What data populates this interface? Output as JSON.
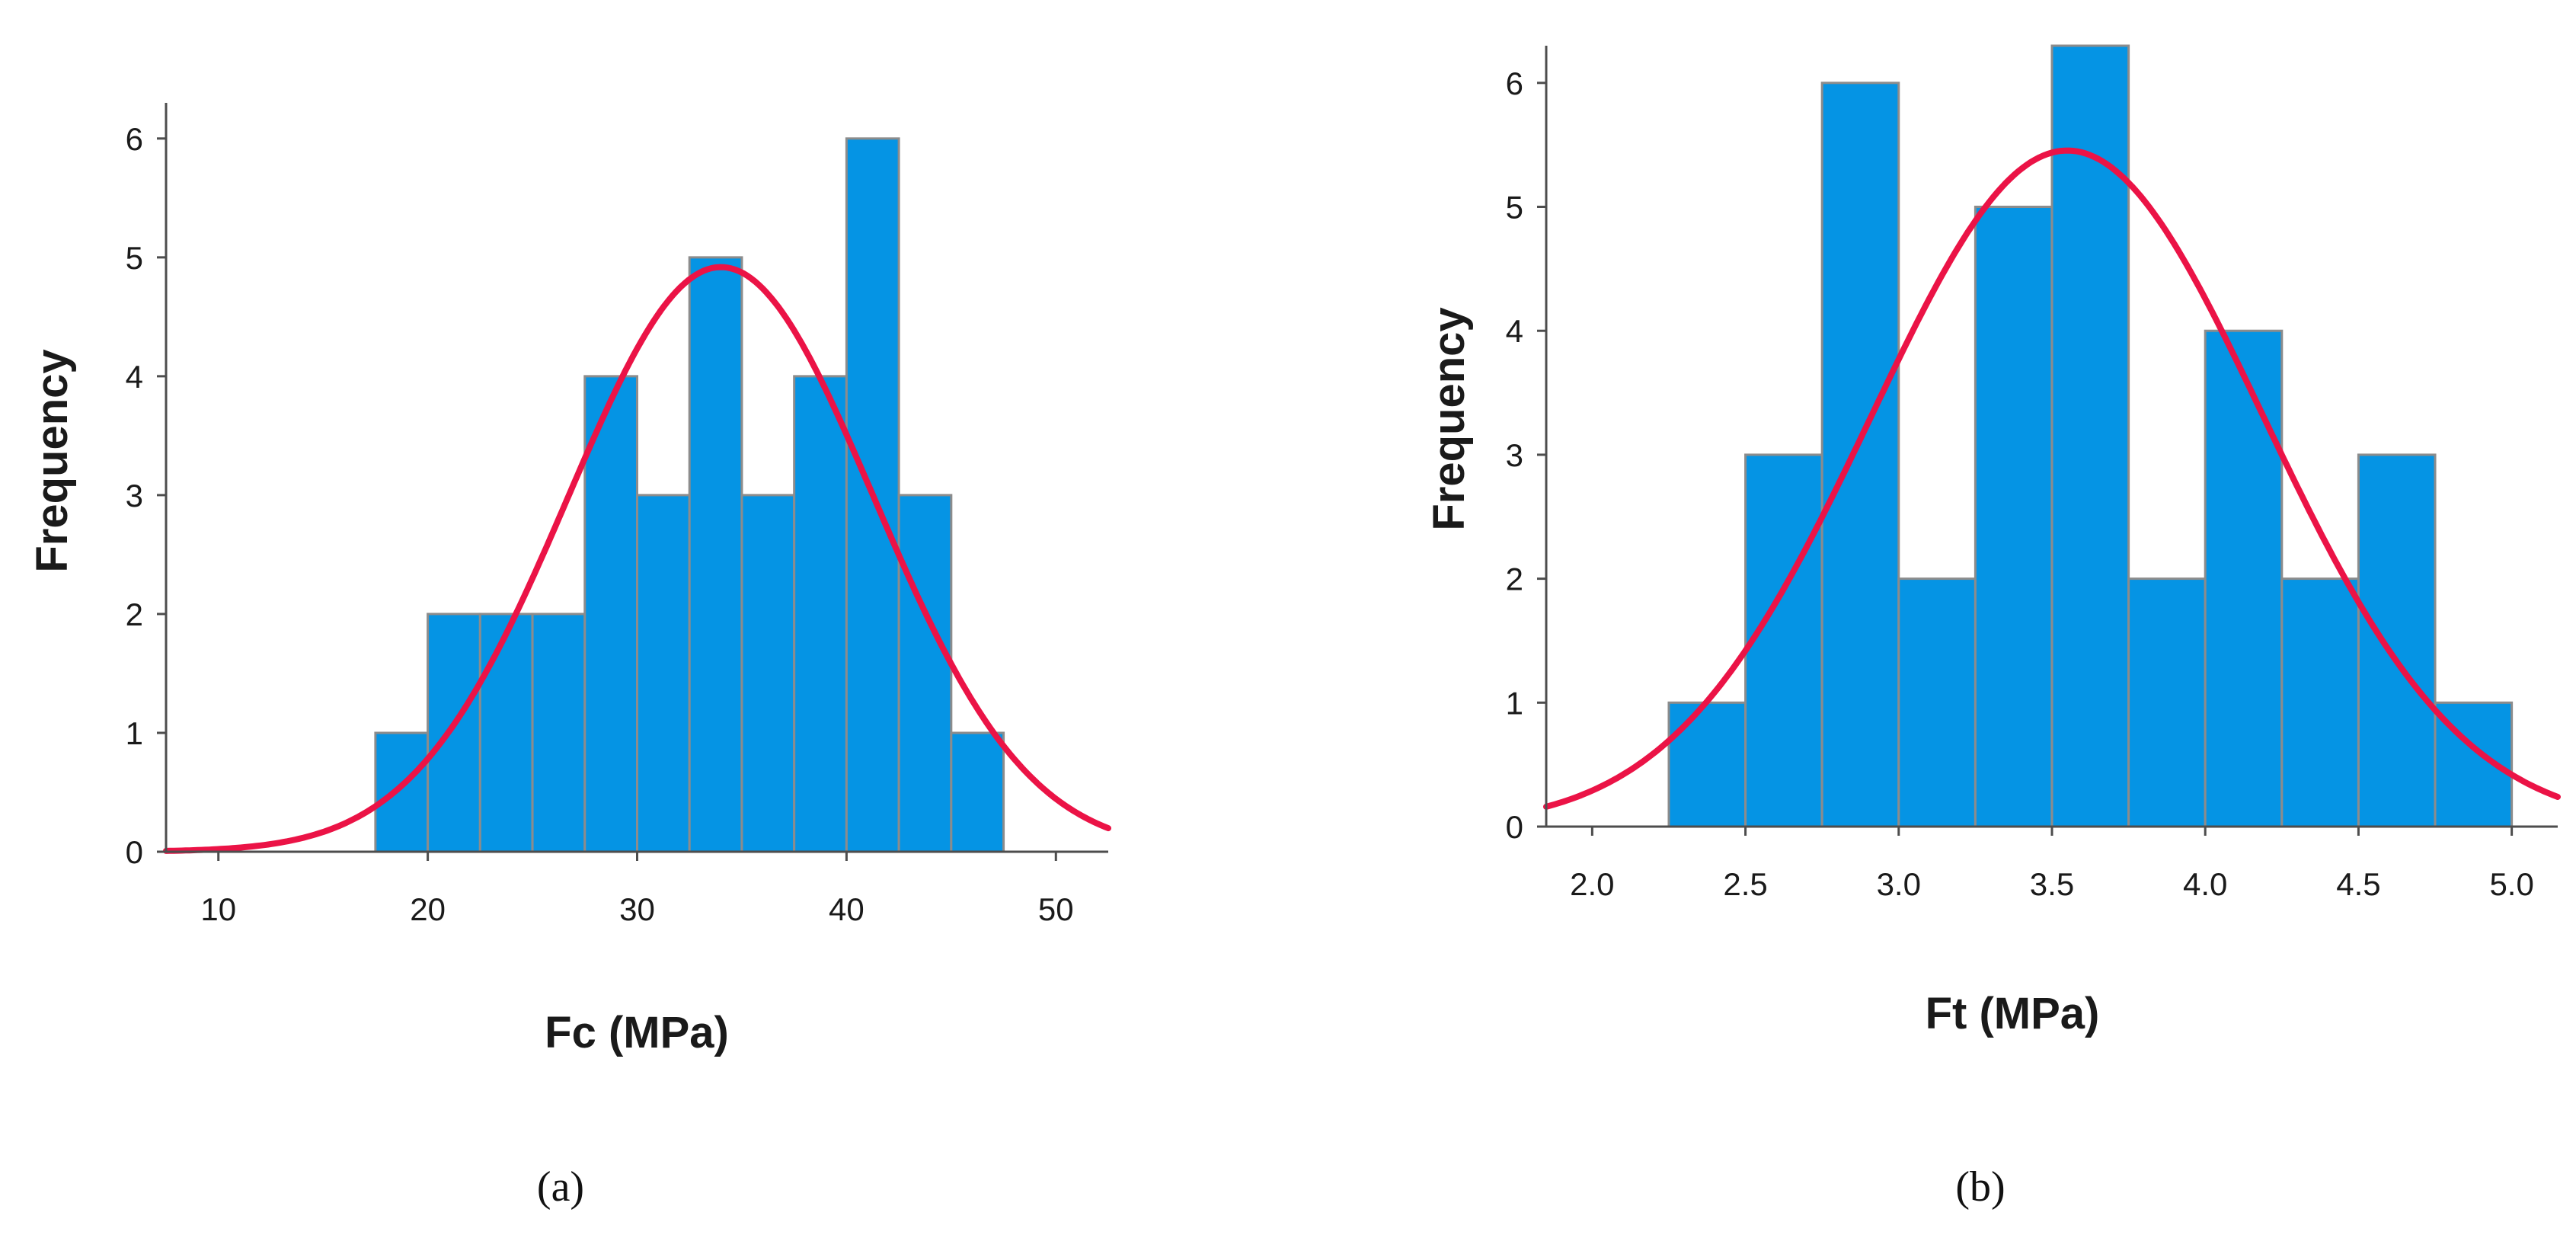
{
  "colors": {
    "bar_fill": "#0594e4",
    "bar_edge": "#8c8c8c",
    "curve": "#eb1346",
    "axis": "#4d4d4d"
  },
  "chart_data": [
    {
      "type": "bar",
      "subtype": "histogram_with_normal_curve",
      "caption": "(a)",
      "xlabel": "Fc (MPa)",
      "ylabel": "Frequency",
      "xlim": [
        7.5,
        52.5
      ],
      "ylim": [
        0,
        6.3
      ],
      "xticks": [
        10,
        20,
        30,
        40,
        50
      ],
      "xtick_labels": [
        "10",
        "20",
        "30",
        "40",
        "50"
      ],
      "yticks": [
        0,
        1,
        2,
        3,
        4,
        5,
        6
      ],
      "ytick_labels": [
        "0",
        "1",
        "2",
        "3",
        "4",
        "5",
        "6"
      ],
      "bin_width": 2.5,
      "bin_starts": [
        17.5,
        20,
        22.5,
        25,
        27.5,
        30,
        32.5,
        35,
        37.5,
        40,
        42.5,
        45
      ],
      "values": [
        1,
        2,
        2,
        2,
        4,
        3,
        5,
        3,
        4,
        6,
        3,
        1
      ],
      "normal_curve": {
        "mean": 34,
        "std": 7.3,
        "n": 36
      }
    },
    {
      "type": "bar",
      "subtype": "histogram_with_normal_curve",
      "caption": "(b)",
      "xlabel": "Ft (MPa)",
      "ylabel": "Frequency",
      "xlim": [
        1.85,
        5.15
      ],
      "ylim": [
        0,
        6.3
      ],
      "xticks": [
        2.0,
        2.5,
        3.0,
        3.5,
        4.0,
        4.5,
        5.0
      ],
      "xtick_labels": [
        "2.0",
        "2.5",
        "3.0",
        "3.5",
        "4.0",
        "4.5",
        "5.0"
      ],
      "yticks": [
        0,
        1,
        2,
        3,
        4,
        5,
        6
      ],
      "ytick_labels": [
        "0",
        "1",
        "2",
        "3",
        "4",
        "5",
        "6"
      ],
      "bin_width": 0.25,
      "bin_starts": [
        2.25,
        2.5,
        2.75,
        3.0,
        3.25,
        3.5,
        3.75,
        4.0,
        4.25,
        4.5,
        4.75
      ],
      "values": [
        1,
        3,
        6,
        2,
        5,
        6.3,
        2,
        4,
        2,
        3,
        1
      ],
      "normal_curve": {
        "mean": 3.55,
        "std": 0.64,
        "n": 35
      }
    }
  ]
}
